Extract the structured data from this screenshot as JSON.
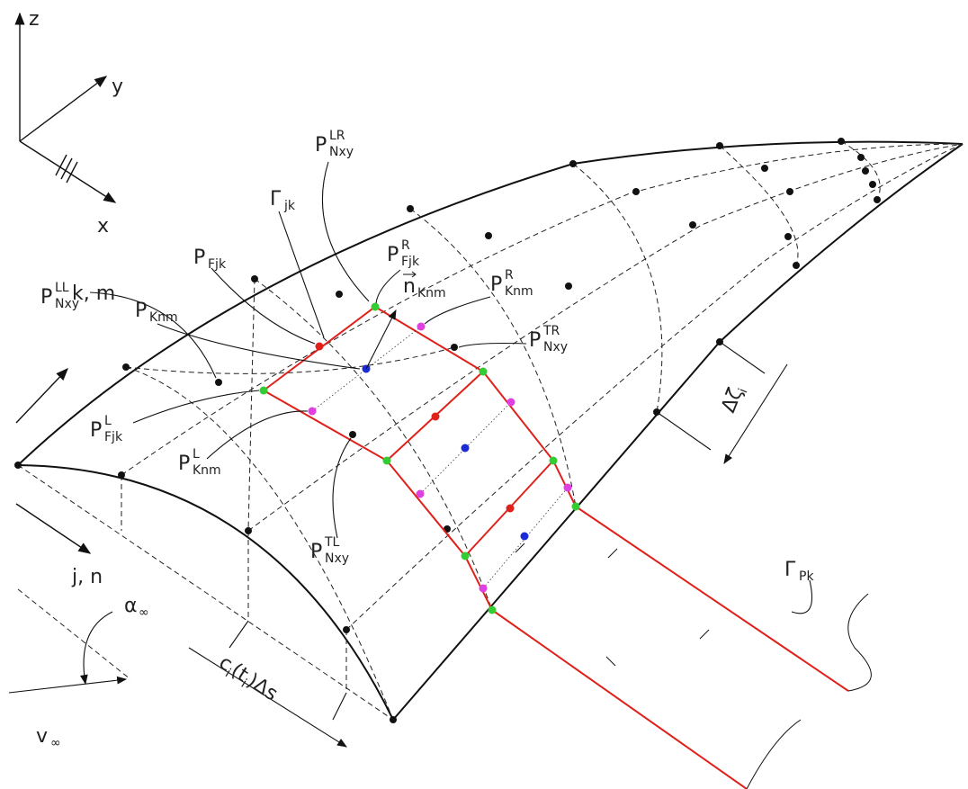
{
  "labels": [
    {
      "main": "z"
    },
    {
      "main": "y"
    },
    {
      "main": "x"
    },
    {
      "main": "k, m"
    },
    {
      "main": "j, n"
    },
    {
      "main": "P",
      "sub": "Knm"
    },
    {
      "main": "P",
      "sub": "Fjk"
    },
    {
      "main": "Γ",
      "sub": "jk"
    },
    {
      "main": "P",
      "sup": "R",
      "sub": "Fjk"
    },
    {
      "main": "P",
      "sup": "LR",
      "sub": "Nxy"
    },
    {
      "main": "n",
      "sub": "Knm"
    },
    {
      "main": "P",
      "sup": "R",
      "sub": "Knm"
    },
    {
      "main": "P",
      "sup": "TR",
      "sub": "Nxy"
    },
    {
      "main": "P",
      "sup": "LL",
      "sub": "Nxy"
    },
    {
      "main": "P",
      "sup": "L",
      "sub": "Fjk"
    },
    {
      "main": "P",
      "sup": "L",
      "sub": "Knm"
    },
    {
      "main": "P",
      "sup": "TL",
      "sub": "Nxy"
    },
    {
      "main": "Γ",
      "sub": "Pk"
    },
    {
      "main": "Δζ",
      "sub": "i"
    },
    {
      "parts": [
        "c",
        "i",
        "(t",
        "i",
        ")Δs"
      ]
    },
    {
      "main": "α",
      "sub": "∞"
    },
    {
      "main": "v",
      "sub": "∞"
    }
  ]
}
